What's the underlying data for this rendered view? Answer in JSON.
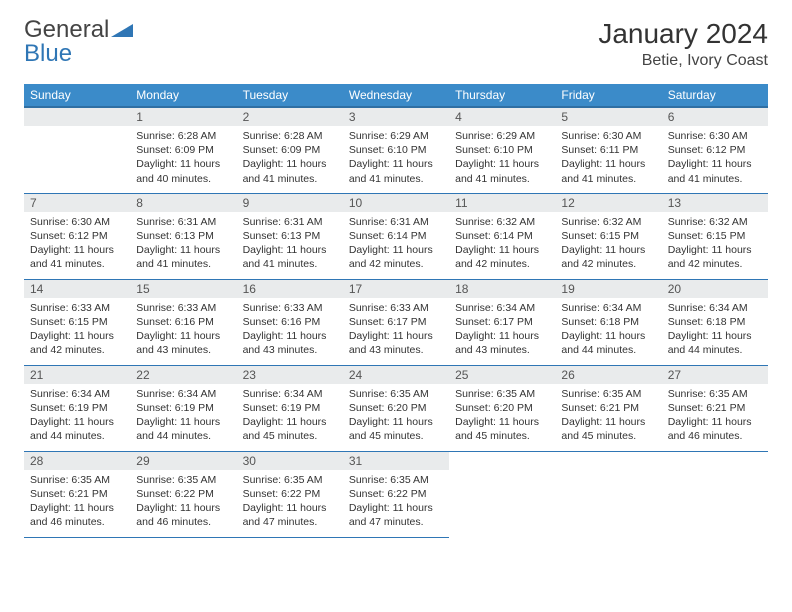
{
  "brand": {
    "name1": "General",
    "name2": "Blue",
    "tri_color": "#2f76b5"
  },
  "title": "January 2024",
  "location": "Betie, Ivory Coast",
  "columns": [
    "Sunday",
    "Monday",
    "Tuesday",
    "Wednesday",
    "Thursday",
    "Friday",
    "Saturday"
  ],
  "colors": {
    "header_bg": "#3b8bc9",
    "header_border": "#2f6fa3",
    "row_border": "#2f76b5",
    "daynum_bg": "#e9ebec"
  },
  "weeks": [
    [
      null,
      {
        "n": "1",
        "sr": "6:28 AM",
        "ss": "6:09 PM",
        "dl": "11 hours and 40 minutes."
      },
      {
        "n": "2",
        "sr": "6:28 AM",
        "ss": "6:09 PM",
        "dl": "11 hours and 41 minutes."
      },
      {
        "n": "3",
        "sr": "6:29 AM",
        "ss": "6:10 PM",
        "dl": "11 hours and 41 minutes."
      },
      {
        "n": "4",
        "sr": "6:29 AM",
        "ss": "6:10 PM",
        "dl": "11 hours and 41 minutes."
      },
      {
        "n": "5",
        "sr": "6:30 AM",
        "ss": "6:11 PM",
        "dl": "11 hours and 41 minutes."
      },
      {
        "n": "6",
        "sr": "6:30 AM",
        "ss": "6:12 PM",
        "dl": "11 hours and 41 minutes."
      }
    ],
    [
      {
        "n": "7",
        "sr": "6:30 AM",
        "ss": "6:12 PM",
        "dl": "11 hours and 41 minutes."
      },
      {
        "n": "8",
        "sr": "6:31 AM",
        "ss": "6:13 PM",
        "dl": "11 hours and 41 minutes."
      },
      {
        "n": "9",
        "sr": "6:31 AM",
        "ss": "6:13 PM",
        "dl": "11 hours and 41 minutes."
      },
      {
        "n": "10",
        "sr": "6:31 AM",
        "ss": "6:14 PM",
        "dl": "11 hours and 42 minutes."
      },
      {
        "n": "11",
        "sr": "6:32 AM",
        "ss": "6:14 PM",
        "dl": "11 hours and 42 minutes."
      },
      {
        "n": "12",
        "sr": "6:32 AM",
        "ss": "6:15 PM",
        "dl": "11 hours and 42 minutes."
      },
      {
        "n": "13",
        "sr": "6:32 AM",
        "ss": "6:15 PM",
        "dl": "11 hours and 42 minutes."
      }
    ],
    [
      {
        "n": "14",
        "sr": "6:33 AM",
        "ss": "6:15 PM",
        "dl": "11 hours and 42 minutes."
      },
      {
        "n": "15",
        "sr": "6:33 AM",
        "ss": "6:16 PM",
        "dl": "11 hours and 43 minutes."
      },
      {
        "n": "16",
        "sr": "6:33 AM",
        "ss": "6:16 PM",
        "dl": "11 hours and 43 minutes."
      },
      {
        "n": "17",
        "sr": "6:33 AM",
        "ss": "6:17 PM",
        "dl": "11 hours and 43 minutes."
      },
      {
        "n": "18",
        "sr": "6:34 AM",
        "ss": "6:17 PM",
        "dl": "11 hours and 43 minutes."
      },
      {
        "n": "19",
        "sr": "6:34 AM",
        "ss": "6:18 PM",
        "dl": "11 hours and 44 minutes."
      },
      {
        "n": "20",
        "sr": "6:34 AM",
        "ss": "6:18 PM",
        "dl": "11 hours and 44 minutes."
      }
    ],
    [
      {
        "n": "21",
        "sr": "6:34 AM",
        "ss": "6:19 PM",
        "dl": "11 hours and 44 minutes."
      },
      {
        "n": "22",
        "sr": "6:34 AM",
        "ss": "6:19 PM",
        "dl": "11 hours and 44 minutes."
      },
      {
        "n": "23",
        "sr": "6:34 AM",
        "ss": "6:19 PM",
        "dl": "11 hours and 45 minutes."
      },
      {
        "n": "24",
        "sr": "6:35 AM",
        "ss": "6:20 PM",
        "dl": "11 hours and 45 minutes."
      },
      {
        "n": "25",
        "sr": "6:35 AM",
        "ss": "6:20 PM",
        "dl": "11 hours and 45 minutes."
      },
      {
        "n": "26",
        "sr": "6:35 AM",
        "ss": "6:21 PM",
        "dl": "11 hours and 45 minutes."
      },
      {
        "n": "27",
        "sr": "6:35 AM",
        "ss": "6:21 PM",
        "dl": "11 hours and 46 minutes."
      }
    ],
    [
      {
        "n": "28",
        "sr": "6:35 AM",
        "ss": "6:21 PM",
        "dl": "11 hours and 46 minutes."
      },
      {
        "n": "29",
        "sr": "6:35 AM",
        "ss": "6:22 PM",
        "dl": "11 hours and 46 minutes."
      },
      {
        "n": "30",
        "sr": "6:35 AM",
        "ss": "6:22 PM",
        "dl": "11 hours and 47 minutes."
      },
      {
        "n": "31",
        "sr": "6:35 AM",
        "ss": "6:22 PM",
        "dl": "11 hours and 47 minutes."
      },
      null,
      null,
      null
    ]
  ],
  "labels": {
    "sunrise": "Sunrise:",
    "sunset": "Sunset:",
    "daylight": "Daylight:"
  }
}
